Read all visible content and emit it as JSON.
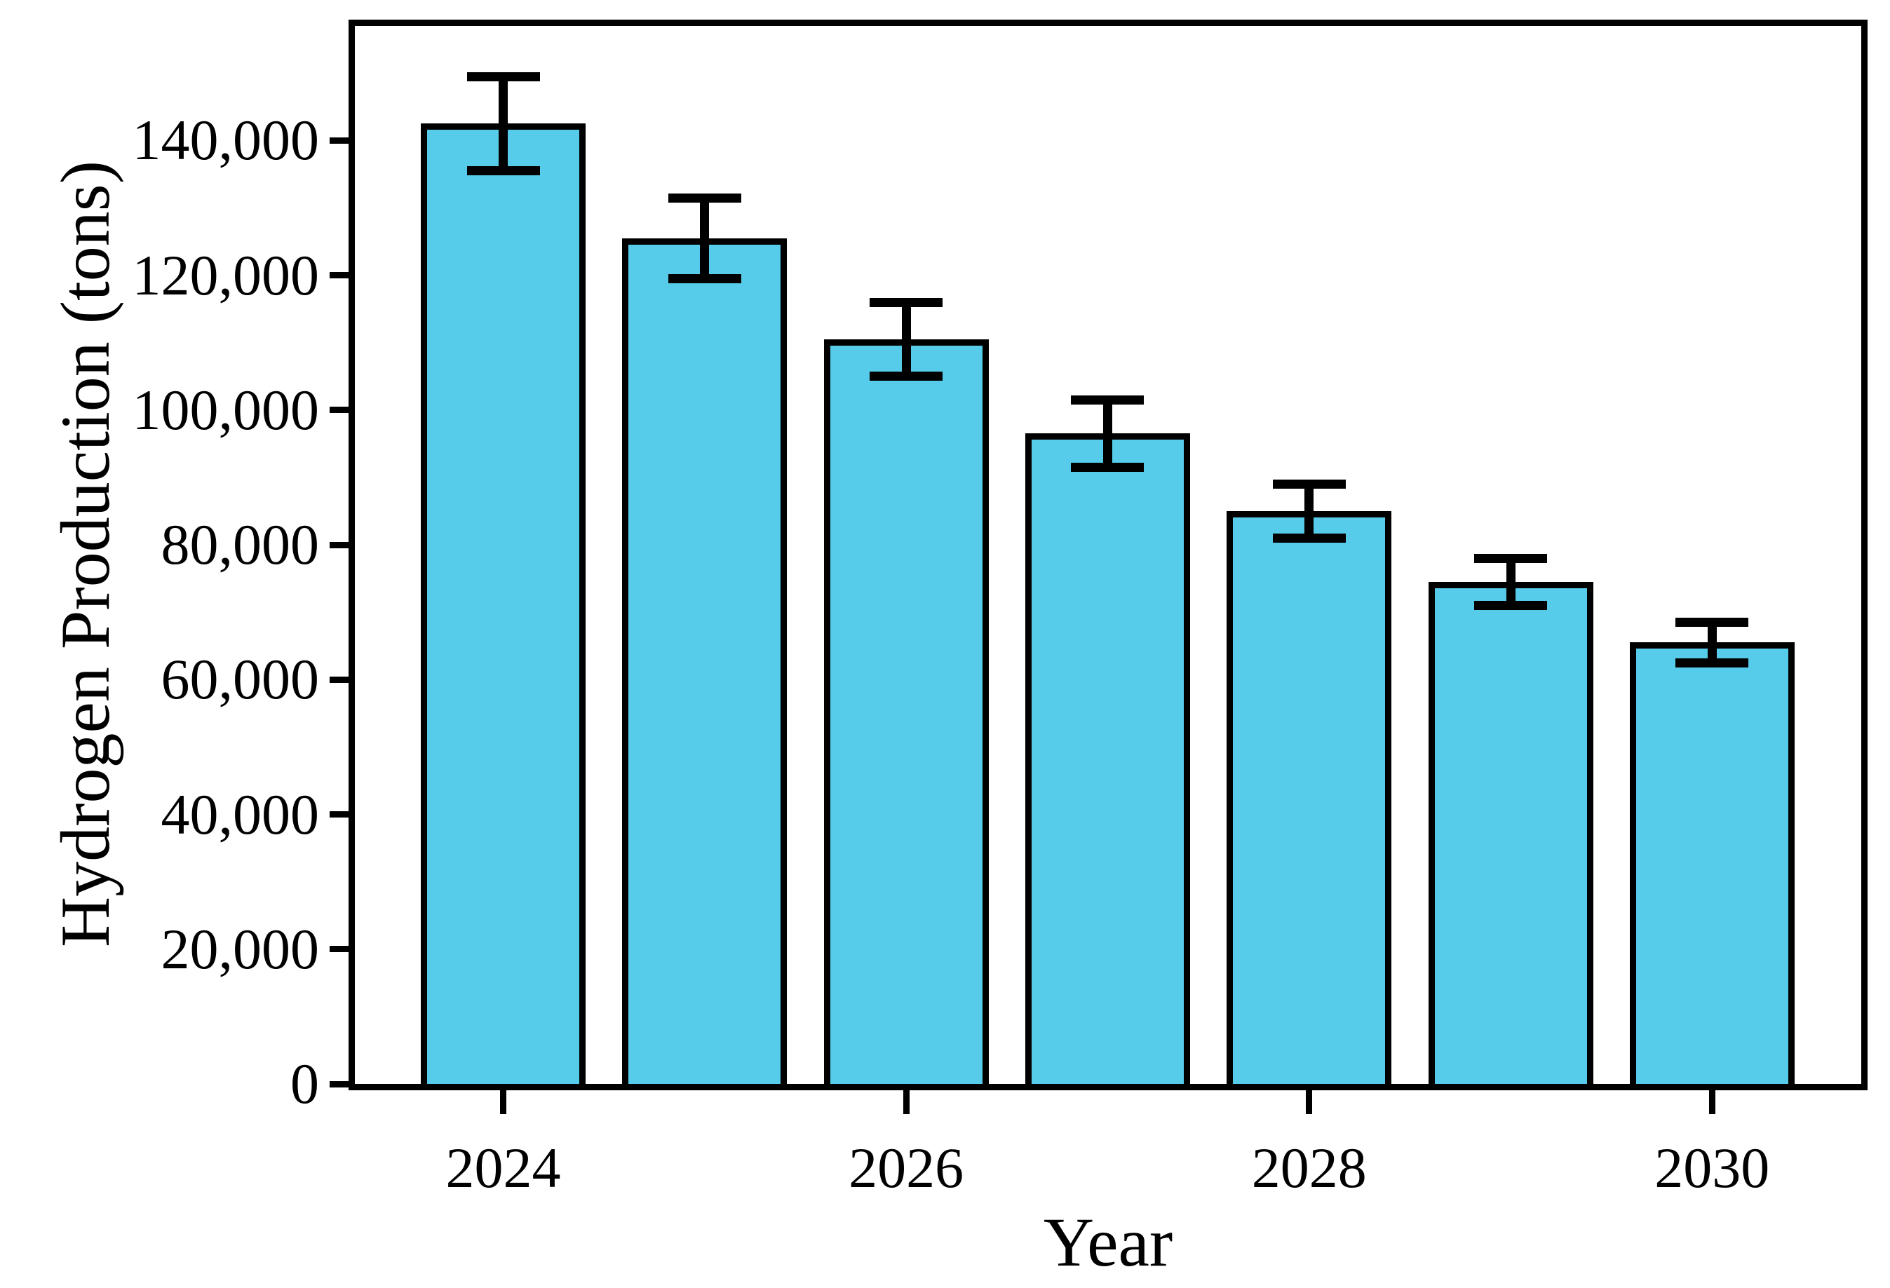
{
  "chart_data": {
    "type": "bar",
    "title": "",
    "xlabel": "Year",
    "ylabel": "Hydrogen Production (tons)",
    "categories": [
      2024,
      2025,
      2026,
      2027,
      2028,
      2029,
      2030
    ],
    "values": [
      142500,
      125500,
      110500,
      96500,
      85000,
      74500,
      65500
    ],
    "error_bars": [
      7000,
      6000,
      5500,
      5000,
      4000,
      3500,
      3000
    ],
    "ylim": [
      0,
      157000
    ],
    "yticks": [
      0,
      20000,
      40000,
      60000,
      80000,
      100000,
      120000,
      140000
    ],
    "ytick_labels": [
      "0",
      "20,000",
      "40,000",
      "60,000",
      "80,000",
      "100,000",
      "120,000",
      "140,000"
    ],
    "xticks_labeled_years": [
      2024,
      2026,
      2028,
      2030
    ],
    "grid": "off",
    "legend": "none",
    "bar_color": "#56CCEA",
    "bar_border_color": "#000000",
    "error_bar_color": "#000000",
    "frame": "full-box"
  }
}
